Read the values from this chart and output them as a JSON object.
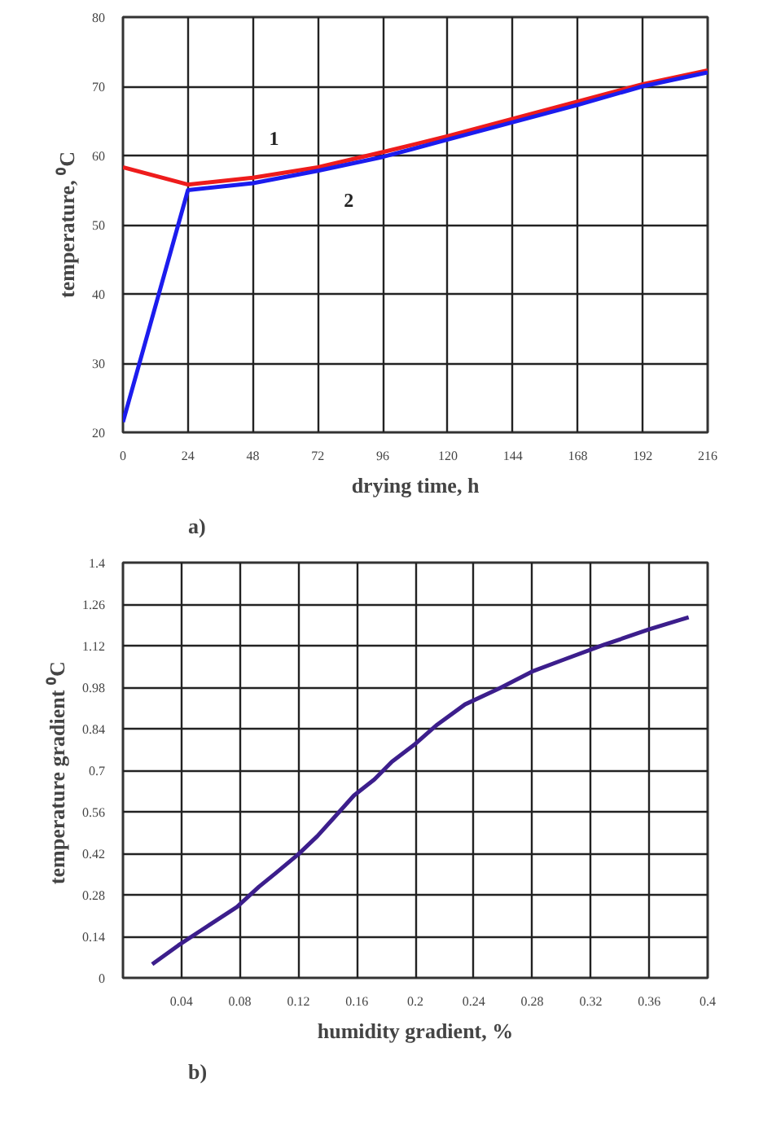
{
  "chart_data": [
    {
      "type": "line",
      "xlabel": "drying time, h",
      "ylabel": "temperature, ⁰C",
      "annotations": [
        "a)"
      ],
      "x": [
        0,
        24,
        48,
        72,
        96,
        120,
        144,
        168,
        192,
        216
      ],
      "series": [
        {
          "name": "1",
          "color": "#ee1c1c",
          "values": [
            58.3,
            55.8,
            56.8,
            58.3,
            60.5,
            62.8,
            65.3,
            67.8,
            70.3,
            72.3
          ]
        },
        {
          "name": "2",
          "color": "#1c1cee",
          "values": [
            21.5,
            55,
            56,
            57.8,
            59.8,
            62.3,
            64.8,
            67.3,
            70,
            72
          ]
        }
      ],
      "xlim": [
        0,
        216
      ],
      "xticks": [
        0,
        24,
        48,
        72,
        96,
        120,
        144,
        168,
        192,
        216
      ],
      "ylim": [
        20,
        80
      ],
      "yticks": [
        20,
        30,
        40,
        50,
        60,
        70,
        80
      ],
      "grid": true,
      "marker": "none",
      "line_style": "solid"
    },
    {
      "type": "line",
      "xlabel": "humidity gradient, %",
      "ylabel": "temperature gradient  ⁰C",
      "annotations": [
        "b)"
      ],
      "x": [
        0.02,
        0.038,
        0.054,
        0.078,
        0.093,
        0.105,
        0.12,
        0.133,
        0.144,
        0.158,
        0.172,
        0.184,
        0.199,
        0.215,
        0.234,
        0.258,
        0.28,
        0.301,
        0.329,
        0.36,
        0.387
      ],
      "series": [
        {
          "color": "#3c1e8c",
          "values": [
            0.046,
            0.11,
            0.162,
            0.239,
            0.307,
            0.355,
            0.417,
            0.478,
            0.538,
            0.615,
            0.669,
            0.729,
            0.785,
            0.854,
            0.922,
            0.977,
            1.033,
            1.072,
            1.123,
            1.175,
            1.216
          ]
        }
      ],
      "xlim": [
        0,
        0.4
      ],
      "xticks": [
        0.04,
        0.08,
        0.12,
        0.16,
        0.2,
        0.24,
        0.28,
        0.32,
        0.36,
        0.4
      ],
      "ylim": [
        0,
        1.4
      ],
      "yticks": [
        0,
        0.14,
        0.28,
        0.42,
        0.56,
        0.7,
        0.84,
        0.98,
        1.12,
        1.26,
        1.4
      ],
      "grid": true,
      "marker": "none",
      "line_style": "solid"
    }
  ]
}
